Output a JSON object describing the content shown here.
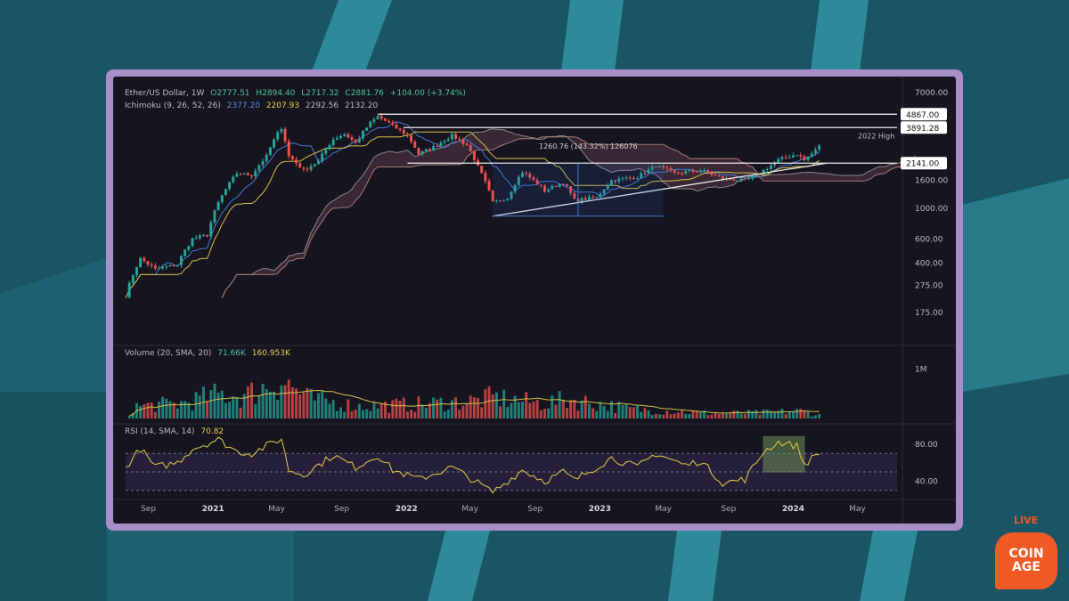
{
  "header": {
    "symbol": "Ether/US Dollar, 1W",
    "ohlc": {
      "open": "O2777.51",
      "high": "H2894.40",
      "low": "L2717.32",
      "close": "C2881.76",
      "change": "+104.00 (+3.74%)"
    },
    "ichimoku_label": "Ichimoku (9, 26, 52, 26)",
    "ichimoku_values": [
      "2377.20",
      "2207.93",
      "2292.56",
      "2132.20"
    ],
    "volume_label": "Volume (20, SMA, 20)",
    "volume_values": [
      "71.66K",
      "160.953K"
    ],
    "rsi_label": "RSI (14, SMA, 14)",
    "rsi_value": "70.82"
  },
  "colors": {
    "up": "#26a69a",
    "down": "#ef5350",
    "background": "#16151f",
    "accent_frame": "#a98ec9",
    "brand": "#f15a25"
  },
  "chart_data": [
    {
      "type": "candlestick",
      "title": "Ether/US Dollar, 1W",
      "scale": "log",
      "ylim": [
        120,
        7000
      ],
      "price_ticks": [
        "7000.00",
        "1600.00",
        "1000.00",
        "600.00",
        "400.00",
        "275.00",
        "175.00"
      ],
      "price_ticks_values": [
        7000,
        1600,
        1000,
        600,
        400,
        275,
        175
      ],
      "x_ticks": [
        "Sep",
        "2021",
        "May",
        "Sep",
        "2022",
        "May",
        "Sep",
        "2023",
        "May",
        "Sep",
        "2024",
        "May"
      ],
      "x_ticks_dates": [
        "2020-09-01",
        "2021-01-01",
        "2021-05-01",
        "2021-09-01",
        "2022-01-01",
        "2022-05-01",
        "2022-09-01",
        "2023-01-01",
        "2023-05-01",
        "2023-09-01",
        "2024-01-01",
        "2024-05-01"
      ],
      "x_range": [
        "2020-07-20",
        "2024-07-15"
      ],
      "price_path": [
        [
          "2020-07-20",
          230
        ],
        [
          "2020-08-17",
          430
        ],
        [
          "2020-09-14",
          360
        ],
        [
          "2020-10-26",
          390
        ],
        [
          "2020-11-23",
          600
        ],
        [
          "2020-12-21",
          640
        ],
        [
          "2021-01-11",
          1100
        ],
        [
          "2021-02-15",
          1800
        ],
        [
          "2021-03-15",
          1750
        ],
        [
          "2021-04-12",
          2400
        ],
        [
          "2021-05-10",
          3900
        ],
        [
          "2021-05-24",
          2400
        ],
        [
          "2021-06-21",
          1900
        ],
        [
          "2021-07-19",
          2200
        ],
        [
          "2021-08-16",
          3200
        ],
        [
          "2021-09-06",
          3500
        ],
        [
          "2021-09-27",
          3000
        ],
        [
          "2021-10-25",
          4200
        ],
        [
          "2021-11-08",
          4700
        ],
        [
          "2021-12-06",
          4000
        ],
        [
          "2022-01-03",
          3400
        ],
        [
          "2022-01-24",
          2500
        ],
        [
          "2022-02-21",
          2800
        ],
        [
          "2022-03-28",
          3400
        ],
        [
          "2022-04-25",
          2900
        ],
        [
          "2022-05-16",
          2000
        ],
        [
          "2022-06-13",
          1100
        ],
        [
          "2022-07-11",
          1200
        ],
        [
          "2022-08-08",
          1850
        ],
        [
          "2022-09-19",
          1350
        ],
        [
          "2022-10-24",
          1550
        ],
        [
          "2022-11-14",
          1150
        ],
        [
          "2022-12-26",
          1200
        ],
        [
          "2023-01-23",
          1600
        ],
        [
          "2023-03-13",
          1700
        ],
        [
          "2023-04-17",
          2050
        ],
        [
          "2023-05-22",
          1800
        ],
        [
          "2023-07-10",
          1900
        ],
        [
          "2023-08-21",
          1650
        ],
        [
          "2023-10-02",
          1600
        ],
        [
          "2023-10-30",
          1800
        ],
        [
          "2023-12-04",
          2250
        ],
        [
          "2024-01-08",
          2500
        ],
        [
          "2024-01-22",
          2250
        ],
        [
          "2024-02-12",
          2650
        ],
        [
          "2024-02-19",
          2881.76
        ]
      ],
      "price_labels": [
        {
          "text": "4867.00",
          "value": 4867
        },
        {
          "text": "3891.28",
          "value": 3891.28
        },
        {
          "text": "2141.00",
          "value": 2141
        }
      ],
      "annotations": [
        {
          "text": "2022 High",
          "value": 3891.28
        },
        {
          "text": "1260.76 (143.32%) 126076",
          "value": 2141
        }
      ],
      "lines": [
        {
          "kind": "horizontal",
          "value": 4867,
          "from": "2021-11-08"
        },
        {
          "kind": "horizontal",
          "value": 3891.28,
          "from": "2021-12-27"
        },
        {
          "kind": "horizontal",
          "value": 2141,
          "from": "2022-01-03"
        },
        {
          "kind": "trendline",
          "points": [
            [
              "2022-06-13",
              880
            ],
            [
              "2024-03-04",
              2141
            ]
          ]
        }
      ],
      "measure": {
        "from": "2022-06-13",
        "to": "2023-05-01",
        "low": 880,
        "high": 2141
      }
    },
    {
      "type": "bar",
      "title": "Volume (20, SMA, 20)",
      "y_ticks": [
        "1M"
      ],
      "y_ticks_values": [
        1000000
      ],
      "volume_profile": [
        [
          "2020-08-01",
          250000
        ],
        [
          "2020-11-01",
          320000
        ],
        [
          "2021-01-15",
          520000
        ],
        [
          "2021-03-01",
          480000
        ],
        [
          "2021-05-10",
          820000
        ],
        [
          "2021-07-01",
          420000
        ],
        [
          "2021-10-01",
          260000
        ],
        [
          "2022-01-24",
          300000
        ],
        [
          "2022-05-16",
          380000
        ],
        [
          "2022-06-13",
          450000
        ],
        [
          "2022-09-12",
          320000
        ],
        [
          "2022-11-07",
          400000
        ],
        [
          "2023-03-01",
          200000
        ],
        [
          "2023-08-01",
          110000
        ],
        [
          "2023-11-01",
          120000
        ],
        [
          "2024-01-15",
          160000
        ],
        [
          "2024-02-19",
          71660
        ]
      ],
      "sma_last": 160953
    },
    {
      "type": "line",
      "title": "RSI (14, SMA, 14)",
      "y_ticks": [
        "80.00",
        "40.00"
      ],
      "y_ticks_values": [
        80,
        40
      ],
      "ylim": [
        25,
        100
      ],
      "levels": [
        70,
        50,
        30
      ],
      "rsi_path": [
        [
          "2020-07-20",
          55
        ],
        [
          "2020-08-17",
          75
        ],
        [
          "2020-09-14",
          55
        ],
        [
          "2020-10-26",
          60
        ],
        [
          "2020-11-23",
          75
        ],
        [
          "2021-01-11",
          85
        ],
        [
          "2021-02-15",
          72
        ],
        [
          "2021-03-15",
          70
        ],
        [
          "2021-05-10",
          86
        ],
        [
          "2021-05-24",
          52
        ],
        [
          "2021-06-21",
          47
        ],
        [
          "2021-08-16",
          68
        ],
        [
          "2021-09-27",
          55
        ],
        [
          "2021-11-08",
          68
        ],
        [
          "2021-12-06",
          52
        ],
        [
          "2022-01-24",
          42
        ],
        [
          "2022-03-28",
          55
        ],
        [
          "2022-05-16",
          38
        ],
        [
          "2022-06-13",
          28
        ],
        [
          "2022-08-08",
          52
        ],
        [
          "2022-09-19",
          40
        ],
        [
          "2022-10-24",
          50
        ],
        [
          "2022-11-14",
          41
        ],
        [
          "2023-01-23",
          65
        ],
        [
          "2023-03-13",
          55
        ],
        [
          "2023-04-17",
          70
        ],
        [
          "2023-06-12",
          57
        ],
        [
          "2023-07-10",
          62
        ],
        [
          "2023-08-21",
          38
        ],
        [
          "2023-10-02",
          42
        ],
        [
          "2023-11-06",
          72
        ],
        [
          "2023-12-04",
          82
        ],
        [
          "2024-01-08",
          78
        ],
        [
          "2024-01-22",
          58
        ],
        [
          "2024-02-19",
          70.82
        ]
      ],
      "highlight": {
        "from": "2023-11-06",
        "to": "2024-01-22",
        "low": 50,
        "high": 88
      }
    }
  ],
  "branding": {
    "live_label": "LIVE",
    "logo_line1": "COIN",
    "logo_line2": "AGE"
  }
}
